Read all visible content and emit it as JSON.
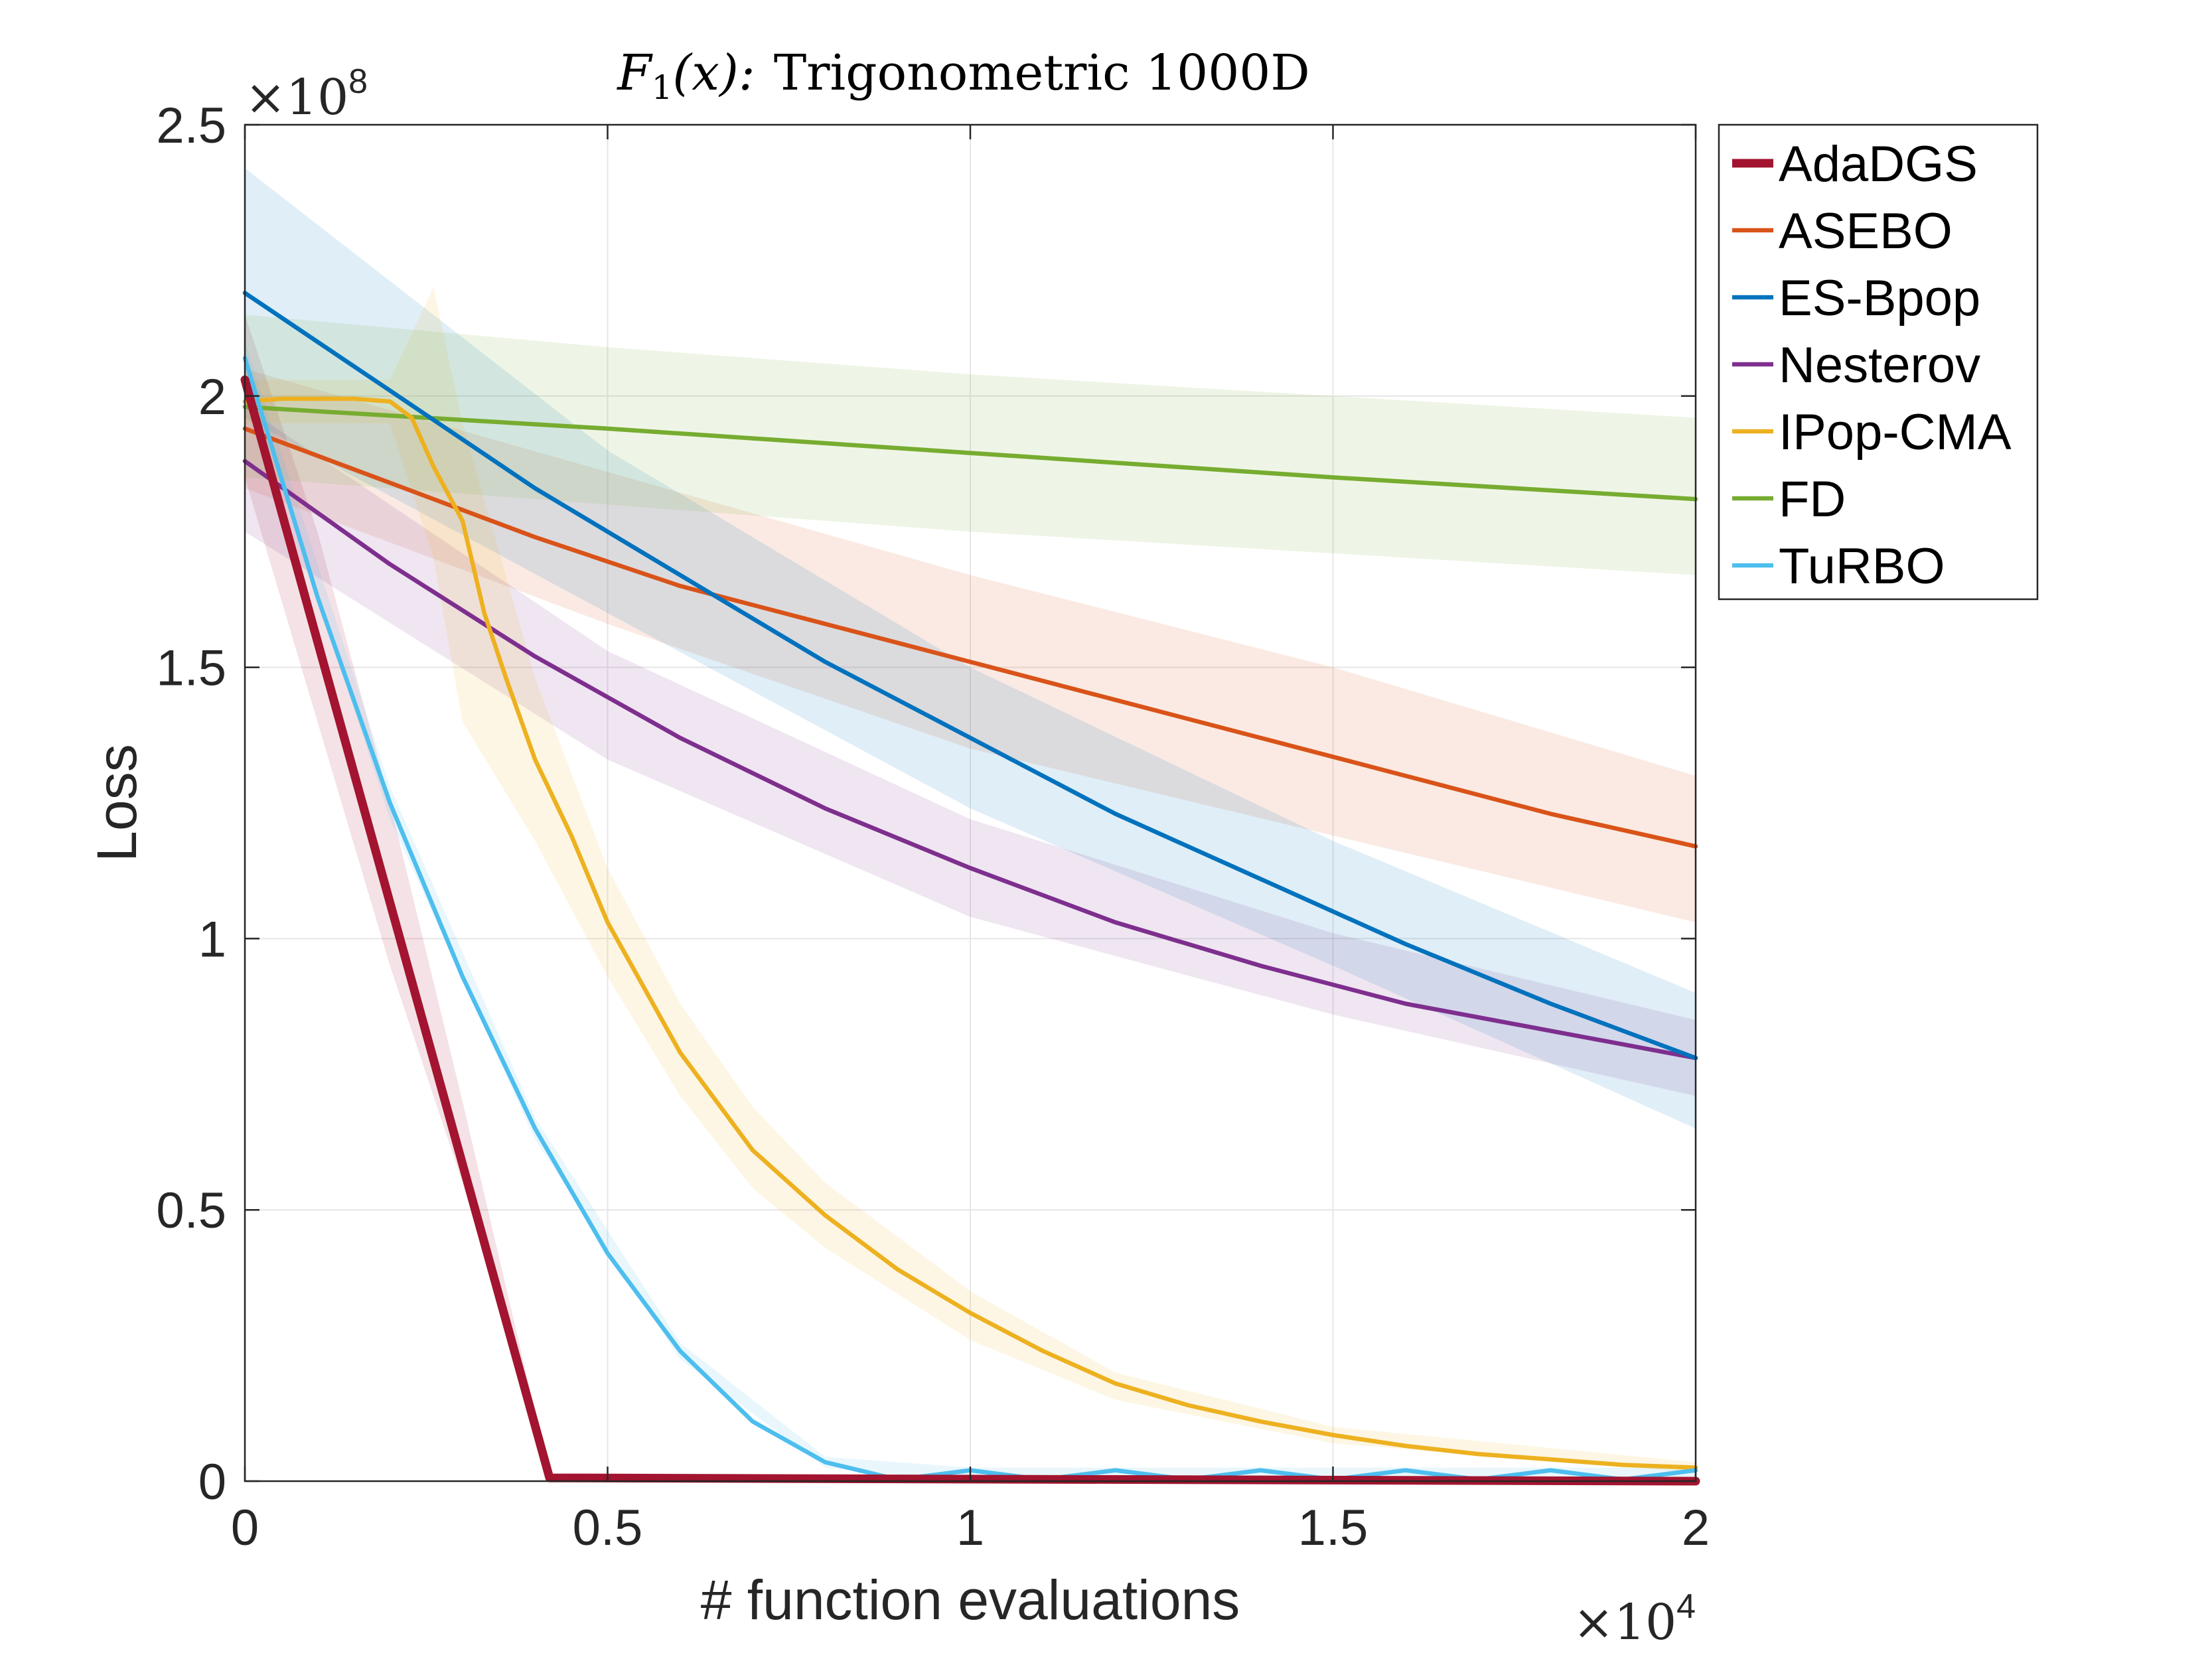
{
  "chart_data": {
    "type": "line",
    "title": "F_1(x):  Trigonometric 1000D",
    "title_parts": {
      "main": "F",
      "sub": "1",
      "args": "(x):",
      "rest": "Trigonometric 1000D"
    },
    "xlabel": "# function evaluations",
    "ylabel": "Loss",
    "xlim": [
      0,
      20000
    ],
    "ylim": [
      0,
      250000000
    ],
    "x_ticks": [
      0,
      5000,
      10000,
      15000,
      20000
    ],
    "x_tick_labels": [
      "0",
      "0.5",
      "1",
      "1.5",
      "2"
    ],
    "y_ticks": [
      0,
      50000000,
      100000000,
      150000000,
      200000000,
      250000000
    ],
    "y_tick_labels": [
      "0",
      "0.5",
      "1",
      "1.5",
      "2",
      "2.5"
    ],
    "x_multiplier": {
      "base": "×10",
      "exp": "4"
    },
    "y_multiplier": {
      "base": "×10",
      "exp": "8"
    },
    "grid": true,
    "legend_position": "outside-top-right",
    "series": [
      {
        "name": "AdaDGS",
        "color": "#a2142f",
        "x": [
          0,
          4200,
          20000
        ],
        "y": [
          203000000,
          600000,
          0
        ],
        "band": {
          "x": [
            0,
            1000,
            2000,
            3000,
            4200,
            20000
          ],
          "upper": [
            215000000,
            175000000,
            125000000,
            70000000,
            1500000,
            500000
          ],
          "lower": [
            185000000,
            140000000,
            95000000,
            55000000,
            0,
            0
          ]
        }
      },
      {
        "name": "ASEBO",
        "color": "#d95319",
        "x": [
          0,
          2000,
          4000,
          6000,
          8000,
          10000,
          12000,
          14000,
          16000,
          18000,
          20000
        ],
        "y": [
          194000000,
          184000000,
          174000000,
          165000000,
          158000000,
          151000000,
          144000000,
          137000000,
          130000000,
          123000000,
          117000000
        ],
        "band": {
          "x": [
            0,
            5000,
            10000,
            15000,
            20000
          ],
          "upper": [
            205000000,
            186000000,
            167000000,
            150000000,
            130000000
          ],
          "lower": [
            183000000,
            158000000,
            135000000,
            119000000,
            103000000
          ]
        }
      },
      {
        "name": "ES-Bpop",
        "color": "#0072bd",
        "x": [
          0,
          2000,
          4000,
          6000,
          8000,
          10000,
          12000,
          14000,
          16000,
          18000,
          20000
        ],
        "y": [
          219000000,
          201000000,
          183000000,
          167000000,
          151000000,
          137000000,
          123000000,
          111000000,
          99000000,
          88000000,
          78000000
        ],
        "band": {
          "x": [
            0,
            5000,
            10000,
            15000,
            20000
          ],
          "upper": [
            242000000,
            190000000,
            150000000,
            118000000,
            90000000
          ],
          "lower": [
            196000000,
            160000000,
            124000000,
            95000000,
            65000000
          ]
        }
      },
      {
        "name": "Nesterov",
        "color": "#7e2f8e",
        "x": [
          0,
          2000,
          4000,
          6000,
          8000,
          10000,
          12000,
          14000,
          16000,
          18000,
          20000
        ],
        "y": [
          188000000,
          169000000,
          152000000,
          137000000,
          124000000,
          113000000,
          103000000,
          95000000,
          88000000,
          83000000,
          78000000
        ],
        "band": {
          "x": [
            0,
            5000,
            10000,
            15000,
            20000
          ],
          "upper": [
            198000000,
            153000000,
            122000000,
            101000000,
            85000000
          ],
          "lower": [
            175000000,
            133000000,
            104000000,
            86000000,
            71000000
          ]
        }
      },
      {
        "name": "IPop-CMA",
        "color": "#edb120",
        "x": [
          0,
          500,
          1000,
          1500,
          2000,
          2300,
          2600,
          3000,
          3300,
          3600,
          4000,
          4500,
          5000,
          5500,
          6000,
          6500,
          7000,
          8000,
          9000,
          10000,
          11000,
          12000,
          13000,
          14000,
          15000,
          16000,
          17000,
          18000,
          19000,
          20000
        ],
        "y": [
          199000000,
          199500000,
          199500000,
          199500000,
          199000000,
          196000000,
          187000000,
          177000000,
          160000000,
          148000000,
          133000000,
          119000000,
          103000000,
          91000000,
          79000000,
          70000000,
          61000000,
          49000000,
          39000000,
          31000000,
          24000000,
          18000000,
          14000000,
          11000000,
          8500000,
          6500000,
          5000000,
          4000000,
          3000000,
          2500000
        ],
        "band": {
          "x": [
            0,
            2000,
            2600,
            3000,
            4000,
            5000,
            6000,
            7000,
            8000,
            10000,
            12000,
            15000,
            20000
          ],
          "upper": [
            203000000,
            203000000,
            220000000,
            195000000,
            148000000,
            113000000,
            88000000,
            69000000,
            55000000,
            35000000,
            20000000,
            10000000,
            3500000
          ],
          "lower": [
            195000000,
            195000000,
            170000000,
            140000000,
            118000000,
            93000000,
            71000000,
            54000000,
            43000000,
            26000000,
            15000000,
            7000000,
            1500000
          ]
        }
      },
      {
        "name": "FD",
        "color": "#77ac30",
        "x": [
          0,
          5000,
          10000,
          15000,
          20000
        ],
        "y": [
          198000000,
          194000000,
          189500000,
          185000000,
          181000000
        ],
        "band": {
          "x": [
            0,
            5000,
            10000,
            15000,
            20000
          ],
          "upper": [
            215000000,
            209000000,
            204000000,
            200000000,
            196000000
          ],
          "lower": [
            185000000,
            180000000,
            175000000,
            171000000,
            167000000
          ]
        }
      },
      {
        "name": "TuRBO",
        "color": "#4dbeee",
        "x": [
          0,
          1000,
          2000,
          3000,
          4000,
          5000,
          6000,
          7000,
          8000,
          9000,
          10000,
          11000,
          12000,
          13000,
          14000,
          15000,
          16000,
          17000,
          18000,
          19000,
          20000
        ],
        "y": [
          207000000,
          163000000,
          125000000,
          93000000,
          65000000,
          42000000,
          24000000,
          11000000,
          3500000,
          300000,
          2000000,
          300000,
          2000000,
          300000,
          2000000,
          300000,
          2000000,
          300000,
          2000000,
          300000,
          2000000
        ],
        "band": {
          "x": [
            0,
            2000,
            4000,
            6000,
            8000,
            10000,
            20000
          ],
          "upper": [
            210000000,
            128000000,
            67000000,
            25500000,
            4500000,
            2500000,
            2500000
          ],
          "lower": [
            204000000,
            122000000,
            63000000,
            22500000,
            2500000,
            0,
            0
          ]
        }
      }
    ]
  }
}
